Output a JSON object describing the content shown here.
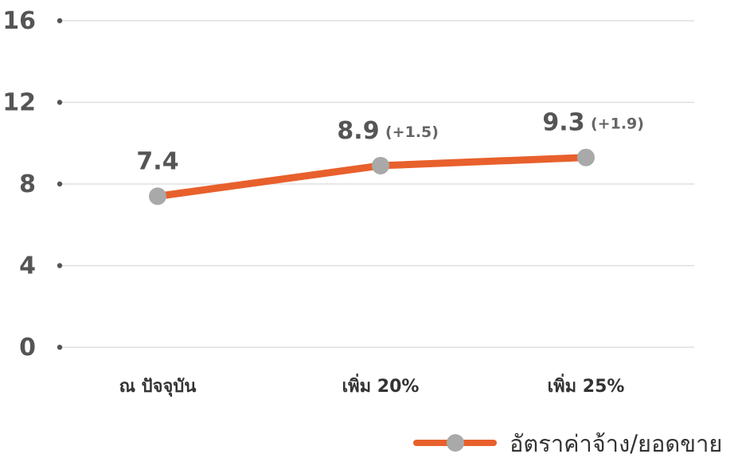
{
  "chart_data": {
    "type": "line",
    "categories": [
      "ณ ปัจจุบัน",
      "เพิ่ม 20%",
      "เพิ่ม 25%"
    ],
    "series": [
      {
        "name": "อัตราค่าจ้าง/ยอดขาย",
        "values": [
          7.4,
          8.9,
          9.3
        ],
        "labels": [
          "7.4",
          "8.9",
          "9.3"
        ],
        "deltas": [
          "",
          "(+1.5)",
          "(+1.9)"
        ]
      }
    ],
    "yticks": [
      "0",
      "4",
      "8",
      "12",
      "16"
    ],
    "ylim": [
      0,
      16
    ],
    "grid": true,
    "legend_position": "bottom-right",
    "colors": {
      "line": "#E8602C",
      "marker": "#A9A9A9",
      "grid": "#d9d9d9"
    }
  }
}
